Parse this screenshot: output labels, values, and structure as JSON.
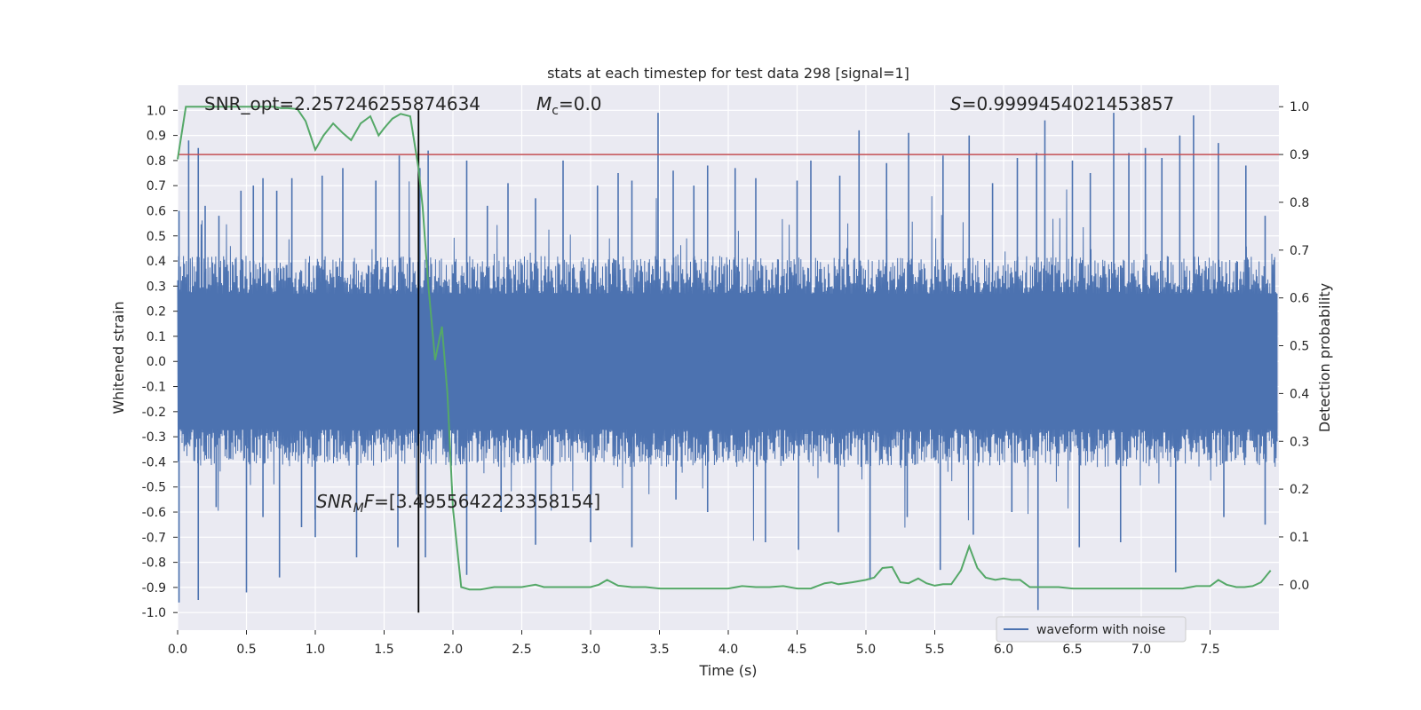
{
  "chart_data": {
    "type": "line",
    "title": "stats at each timestep for test data 298 [signal=1]",
    "xlabel": "Time (s)",
    "ylabel_left": "Whitened strain",
    "ylabel_right": "Detection probability",
    "xlim": [
      0.0,
      8.0
    ],
    "ylim_left": [
      -1.07,
      1.1
    ],
    "ylim_right": [
      -0.095,
      1.045
    ],
    "xticks": [
      "0.0",
      "0.5",
      "1.0",
      "1.5",
      "2.0",
      "2.5",
      "3.0",
      "3.5",
      "4.0",
      "4.5",
      "5.0",
      "5.5",
      "6.0",
      "6.5",
      "7.0",
      "7.5"
    ],
    "xtick_values": [
      0.0,
      0.5,
      1.0,
      1.5,
      2.0,
      2.5,
      3.0,
      3.5,
      4.0,
      4.5,
      5.0,
      5.5,
      6.0,
      6.5,
      7.0,
      7.5
    ],
    "yticks_left": [
      "-1.0",
      "-0.9",
      "-0.8",
      "-0.7",
      "-0.6",
      "-0.5",
      "-0.4",
      "-0.3",
      "-0.2",
      "-0.1",
      "0.0",
      "0.1",
      "0.2",
      "0.3",
      "0.4",
      "0.5",
      "0.6",
      "0.7",
      "0.8",
      "0.9",
      "1.0"
    ],
    "ytick_left_values": [
      -1.0,
      -0.9,
      -0.8,
      -0.7,
      -0.6,
      -0.5,
      -0.4,
      -0.3,
      -0.2,
      -0.1,
      0.0,
      0.1,
      0.2,
      0.3,
      0.4,
      0.5,
      0.6,
      0.7,
      0.8,
      0.9,
      1.0
    ],
    "yticks_right": [
      "0.0",
      "0.1",
      "0.2",
      "0.3",
      "0.4",
      "0.5",
      "0.6",
      "0.7",
      "0.8",
      "0.9",
      "1.0"
    ],
    "ytick_right_values": [
      0.0,
      0.1,
      0.2,
      0.3,
      0.4,
      0.5,
      0.6,
      0.7,
      0.8,
      0.9,
      1.0
    ],
    "grid": true,
    "legend": {
      "entries": [
        "waveform with noise"
      ],
      "placement": "lower-right"
    },
    "annotations": {
      "snr_opt": "SNR_opt=2.257246255874634",
      "mc_symbol": "M",
      "mc_sub": "c",
      "mc_value": "=0.0",
      "s_symbol": "S",
      "s_value": "=0.9999454021453857",
      "snr_mf_symbol": "SNR",
      "snr_mf_sub": "M",
      "snr_mf_rest": "F",
      "snr_mf_value": "=[3.4955642223358154]"
    },
    "threshold_line": {
      "value_right_axis": 0.9,
      "color": "#c44e52"
    },
    "merger_marker": {
      "x": 1.75,
      "color": "#000000"
    },
    "series": [
      {
        "name": "waveform with noise",
        "axis": "left",
        "color": "#4c72b0",
        "description": "dense whitened noise, amplitude mostly within about +/-0.45 with spikes to +/-1",
        "x_range": [
          0.0,
          7.99
        ],
        "envelope_peaks": [
          [
            0.01,
            0.6
          ],
          [
            0.08,
            0.88
          ],
          [
            0.15,
            0.85
          ],
          [
            0.2,
            0.62
          ],
          [
            0.3,
            0.58
          ],
          [
            0.46,
            0.68
          ],
          [
            0.55,
            0.7
          ],
          [
            0.62,
            0.73
          ],
          [
            0.72,
            0.68
          ],
          [
            0.83,
            0.73
          ],
          [
            1.05,
            0.74
          ],
          [
            1.2,
            0.77
          ],
          [
            1.44,
            0.72
          ],
          [
            1.61,
            0.82
          ],
          [
            1.76,
            0.77
          ],
          [
            1.82,
            0.84
          ],
          [
            2.1,
            0.8
          ],
          [
            2.25,
            0.62
          ],
          [
            2.4,
            0.71
          ],
          [
            2.6,
            0.65
          ],
          [
            2.8,
            0.8
          ],
          [
            3.05,
            0.7
          ],
          [
            3.2,
            0.75
          ],
          [
            3.3,
            0.72
          ],
          [
            3.49,
            0.99
          ],
          [
            3.6,
            0.76
          ],
          [
            3.75,
            0.7
          ],
          [
            3.85,
            0.78
          ],
          [
            4.05,
            0.77
          ],
          [
            4.2,
            0.73
          ],
          [
            4.5,
            0.72
          ],
          [
            4.6,
            0.8
          ],
          [
            4.81,
            0.74
          ],
          [
            4.95,
            0.92
          ],
          [
            5.15,
            0.79
          ],
          [
            5.31,
            0.91
          ],
          [
            5.56,
            0.82
          ],
          [
            5.75,
            0.9
          ],
          [
            5.92,
            0.71
          ],
          [
            6.1,
            0.81
          ],
          [
            6.24,
            0.83
          ],
          [
            6.3,
            0.96
          ],
          [
            6.5,
            0.8
          ],
          [
            6.63,
            0.75
          ],
          [
            6.8,
            0.99
          ],
          [
            6.91,
            0.83
          ],
          [
            7.03,
            0.85
          ],
          [
            7.15,
            0.81
          ],
          [
            7.28,
            0.9
          ],
          [
            7.38,
            0.98
          ],
          [
            7.56,
            0.87
          ],
          [
            7.76,
            0.78
          ],
          [
            7.9,
            0.58
          ]
        ],
        "envelope_troughs": [
          [
            0.01,
            -0.96
          ],
          [
            0.15,
            -0.95
          ],
          [
            0.28,
            -0.58
          ],
          [
            0.5,
            -0.92
          ],
          [
            0.62,
            -0.62
          ],
          [
            0.74,
            -0.86
          ],
          [
            0.9,
            -0.66
          ],
          [
            1.0,
            -0.7
          ],
          [
            1.3,
            -0.78
          ],
          [
            1.6,
            -0.74
          ],
          [
            1.8,
            -0.78
          ],
          [
            2.1,
            -0.85
          ],
          [
            2.35,
            -0.6
          ],
          [
            2.6,
            -0.73
          ],
          [
            3.0,
            -0.72
          ],
          [
            3.3,
            -0.74
          ],
          [
            3.62,
            -0.55
          ],
          [
            3.85,
            -0.6
          ],
          [
            4.27,
            -0.72
          ],
          [
            4.51,
            -0.75
          ],
          [
            4.8,
            -0.68
          ],
          [
            5.03,
            -0.87
          ],
          [
            5.3,
            -0.62
          ],
          [
            5.54,
            -0.83
          ],
          [
            5.78,
            -0.69
          ],
          [
            6.06,
            -0.6
          ],
          [
            6.25,
            -0.99
          ],
          [
            6.55,
            -0.74
          ],
          [
            6.85,
            -0.72
          ],
          [
            7.25,
            -0.84
          ],
          [
            7.6,
            -0.62
          ],
          [
            7.9,
            -0.65
          ]
        ]
      },
      {
        "name": "detection probability",
        "axis": "right",
        "color": "#55a868",
        "x": [
          0.0,
          0.06,
          0.12,
          0.2,
          0.3,
          0.4,
          0.5,
          0.6,
          0.7,
          0.75,
          0.8,
          0.87,
          0.93,
          1.0,
          1.06,
          1.13,
          1.2,
          1.26,
          1.33,
          1.4,
          1.46,
          1.5,
          1.56,
          1.62,
          1.69,
          1.75,
          1.78,
          1.82,
          1.87,
          1.92,
          1.96,
          2.0,
          2.06,
          2.12,
          2.2,
          2.3,
          2.4,
          2.5,
          2.6,
          2.66,
          2.8,
          3.0,
          3.06,
          3.12,
          3.2,
          3.3,
          3.4,
          3.5,
          3.7,
          3.9,
          4.0,
          4.1,
          4.2,
          4.3,
          4.4,
          4.5,
          4.6,
          4.7,
          4.75,
          4.8,
          4.9,
          5.0,
          5.06,
          5.12,
          5.19,
          5.25,
          5.31,
          5.38,
          5.44,
          5.5,
          5.56,
          5.62,
          5.69,
          5.75,
          5.81,
          5.87,
          5.94,
          6.0,
          6.06,
          6.12,
          6.19,
          6.25,
          6.31,
          6.4,
          6.5,
          6.6,
          6.7,
          6.8,
          6.9,
          7.0,
          7.1,
          7.2,
          7.3,
          7.4,
          7.5,
          7.56,
          7.62,
          7.69,
          7.75,
          7.81,
          7.87,
          7.94
        ],
        "y": [
          0.89,
          1.0,
          1.0,
          1.0,
          1.0,
          1.0,
          1.0,
          1.0,
          1.0,
          0.997,
          0.997,
          0.995,
          0.97,
          0.91,
          0.94,
          0.965,
          0.945,
          0.93,
          0.965,
          0.98,
          0.94,
          0.955,
          0.975,
          0.985,
          0.98,
          0.87,
          0.79,
          0.63,
          0.47,
          0.54,
          0.4,
          0.16,
          -0.005,
          -0.01,
          -0.01,
          -0.005,
          -0.005,
          -0.005,
          0.0,
          -0.005,
          -0.005,
          -0.005,
          0.0,
          0.01,
          -0.002,
          -0.005,
          -0.005,
          -0.008,
          -0.008,
          -0.008,
          -0.008,
          -0.003,
          -0.005,
          -0.005,
          -0.003,
          -0.008,
          -0.008,
          0.003,
          0.005,
          0.001,
          0.005,
          0.01,
          0.015,
          0.035,
          0.037,
          0.005,
          0.003,
          0.013,
          0.003,
          -0.002,
          0.001,
          0.001,
          0.03,
          0.08,
          0.035,
          0.015,
          0.01,
          0.013,
          0.01,
          0.01,
          -0.005,
          -0.005,
          -0.005,
          -0.005,
          -0.008,
          -0.008,
          -0.008,
          -0.008,
          -0.008,
          -0.008,
          -0.008,
          -0.008,
          -0.008,
          -0.003,
          -0.003,
          0.01,
          0.0,
          -0.005,
          -0.005,
          -0.003,
          0.005,
          0.03
        ]
      }
    ]
  }
}
